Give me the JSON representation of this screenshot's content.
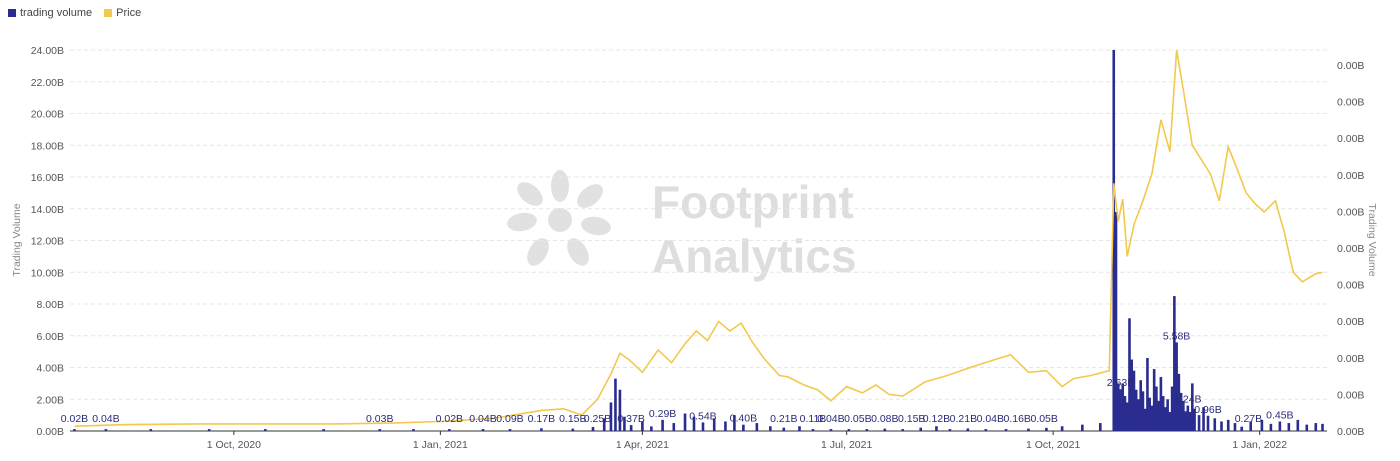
{
  "legend": [
    {
      "label": "trading volume",
      "color": "#2b2c8f"
    },
    {
      "label": "Price",
      "color": "#f2c94c"
    }
  ],
  "watermark": {
    "line1": "Footprint",
    "line2": "Analytics"
  },
  "chart_data": {
    "type": "bar",
    "title": "",
    "ylabel": "Trading Volume",
    "y2label": "Trading Volume",
    "ylim": [
      0,
      24
    ],
    "yticks": [
      "0.00B",
      "2.00B",
      "4.00B",
      "6.00B",
      "8.00B",
      "10.00B",
      "12.00B",
      "14.00B",
      "16.00B",
      "18.00B",
      "20.00B",
      "22.00B",
      "24.00B"
    ],
    "y2ticks": [
      "0.00B",
      "0.00B",
      "0.00B",
      "0.00B",
      "0.00B",
      "0.00B",
      "0.00B",
      "0.00B",
      "0.00B",
      "0.00B",
      "0.00B"
    ],
    "xlim": [
      "2020-07-20",
      "2022-01-31"
    ],
    "xticks": [
      {
        "date": "2020-10-01",
        "label": "1 Oct, 2020"
      },
      {
        "date": "2021-01-01",
        "label": "1 Jan, 2021"
      },
      {
        "date": "2021-04-01",
        "label": "1 Apr, 2021"
      },
      {
        "date": "2021-07-01",
        "label": "1 Jul, 2021"
      },
      {
        "date": "2021-10-01",
        "label": "1 Oct, 2021"
      },
      {
        "date": "2022-01-01",
        "label": "1 Jan, 2022"
      }
    ],
    "grid": true,
    "legend_position": "top-left",
    "series": [
      {
        "name": "trading volume",
        "type": "bar",
        "axis": "left",
        "color": "#2b2c8f",
        "points": [
          [
            "2020-07-22",
            0.02
          ],
          [
            "2020-08-05",
            0.04
          ],
          [
            "2020-08-25",
            0.03
          ],
          [
            "2020-09-20",
            0.03
          ],
          [
            "2020-10-15",
            0.03
          ],
          [
            "2020-11-10",
            0.03
          ],
          [
            "2020-12-05",
            0.03
          ],
          [
            "2020-12-20",
            0.03
          ],
          [
            "2021-01-05",
            0.02
          ],
          [
            "2021-01-20",
            0.04
          ],
          [
            "2021-02-01",
            0.09
          ],
          [
            "2021-02-15",
            0.17
          ],
          [
            "2021-03-01",
            0.15
          ],
          [
            "2021-03-10",
            0.25
          ],
          [
            "2021-03-15",
            0.8
          ],
          [
            "2021-03-18",
            1.8
          ],
          [
            "2021-03-20",
            3.3
          ],
          [
            "2021-03-22",
            2.6
          ],
          [
            "2021-03-24",
            0.9
          ],
          [
            "2021-03-27",
            0.37
          ],
          [
            "2021-04-01",
            0.6
          ],
          [
            "2021-04-05",
            0.29
          ],
          [
            "2021-04-10",
            0.7
          ],
          [
            "2021-04-15",
            0.5
          ],
          [
            "2021-04-20",
            1.1
          ],
          [
            "2021-04-24",
            0.9
          ],
          [
            "2021-04-28",
            0.54
          ],
          [
            "2021-05-03",
            0.8
          ],
          [
            "2021-05-08",
            0.6
          ],
          [
            "2021-05-12",
            1.0
          ],
          [
            "2021-05-16",
            0.4
          ],
          [
            "2021-05-22",
            0.5
          ],
          [
            "2021-05-28",
            0.3
          ],
          [
            "2021-06-03",
            0.21
          ],
          [
            "2021-06-10",
            0.3
          ],
          [
            "2021-06-16",
            0.11
          ],
          [
            "2021-06-24",
            0.04
          ],
          [
            "2021-07-02",
            0.05
          ],
          [
            "2021-07-10",
            0.08
          ],
          [
            "2021-07-18",
            0.15
          ],
          [
            "2021-07-26",
            0.12
          ],
          [
            "2021-08-03",
            0.21
          ],
          [
            "2021-08-10",
            0.3
          ],
          [
            "2021-08-16",
            0.04
          ],
          [
            "2021-08-24",
            0.16
          ],
          [
            "2021-09-01",
            0.05
          ],
          [
            "2021-09-10",
            0.1
          ],
          [
            "2021-09-20",
            0.15
          ],
          [
            "2021-09-28",
            0.2
          ],
          [
            "2021-10-05",
            0.3
          ],
          [
            "2021-10-14",
            0.4
          ],
          [
            "2021-10-22",
            0.5
          ],
          [
            "2021-10-28",
            24.0
          ],
          [
            "2021-10-29",
            13.8
          ],
          [
            "2021-10-30",
            3.0
          ],
          [
            "2021-10-31",
            2.63
          ],
          [
            "2021-11-01",
            3.0
          ],
          [
            "2021-11-02",
            2.2
          ],
          [
            "2021-11-03",
            1.8
          ],
          [
            "2021-11-04",
            7.1
          ],
          [
            "2021-11-05",
            4.5
          ],
          [
            "2021-11-06",
            3.8
          ],
          [
            "2021-11-07",
            2.6
          ],
          [
            "2021-11-08",
            2.0
          ],
          [
            "2021-11-09",
            3.2
          ],
          [
            "2021-11-10",
            2.5
          ],
          [
            "2021-11-11",
            1.4
          ],
          [
            "2021-11-12",
            4.6
          ],
          [
            "2021-11-13",
            2.1
          ],
          [
            "2021-11-14",
            1.6
          ],
          [
            "2021-11-15",
            3.9
          ],
          [
            "2021-11-16",
            2.8
          ],
          [
            "2021-11-17",
            1.9
          ],
          [
            "2021-11-18",
            3.4
          ],
          [
            "2021-11-19",
            2.2
          ],
          [
            "2021-11-20",
            1.5
          ],
          [
            "2021-11-21",
            2.0
          ],
          [
            "2021-11-22",
            1.2
          ],
          [
            "2021-11-23",
            2.8
          ],
          [
            "2021-11-24",
            8.5
          ],
          [
            "2021-11-25",
            5.58
          ],
          [
            "2021-11-26",
            3.6
          ],
          [
            "2021-11-27",
            2.4
          ],
          [
            "2021-11-28",
            1.9
          ],
          [
            "2021-11-29",
            1.24
          ],
          [
            "2021-11-30",
            1.6
          ],
          [
            "2021-12-01",
            1.2
          ],
          [
            "2021-12-02",
            3.0
          ],
          [
            "2021-12-03",
            1.4
          ],
          [
            "2021-12-05",
            1.0
          ],
          [
            "2021-12-07",
            1.5
          ],
          [
            "2021-12-09",
            0.96
          ],
          [
            "2021-12-12",
            0.8
          ],
          [
            "2021-12-15",
            0.6
          ],
          [
            "2021-12-18",
            0.7
          ],
          [
            "2021-12-21",
            0.5
          ],
          [
            "2021-12-24",
            0.27
          ],
          [
            "2021-12-28",
            0.6
          ],
          [
            "2022-01-02",
            0.7
          ],
          [
            "2022-01-06",
            0.45
          ],
          [
            "2022-01-10",
            0.6
          ],
          [
            "2022-01-14",
            0.5
          ],
          [
            "2022-01-18",
            0.7
          ],
          [
            "2022-01-22",
            0.4
          ],
          [
            "2022-01-26",
            0.5
          ],
          [
            "2022-01-29",
            0.45
          ]
        ]
      },
      {
        "name": "Price",
        "type": "line",
        "axis": "right",
        "color": "#f2c94c",
        "points": [
          [
            "2020-07-22",
            0.3
          ],
          [
            "2020-08-15",
            0.4
          ],
          [
            "2020-09-15",
            0.45
          ],
          [
            "2020-10-15",
            0.45
          ],
          [
            "2020-11-15",
            0.45
          ],
          [
            "2020-12-10",
            0.5
          ],
          [
            "2021-01-01",
            0.6
          ],
          [
            "2021-01-25",
            0.8
          ],
          [
            "2021-02-15",
            1.3
          ],
          [
            "2021-02-25",
            1.4
          ],
          [
            "2021-03-05",
            1.0
          ],
          [
            "2021-03-12",
            2.0
          ],
          [
            "2021-03-18",
            3.6
          ],
          [
            "2021-03-22",
            4.9
          ],
          [
            "2021-03-26",
            4.5
          ],
          [
            "2021-04-01",
            3.7
          ],
          [
            "2021-04-08",
            5.1
          ],
          [
            "2021-04-14",
            4.3
          ],
          [
            "2021-04-20",
            5.5
          ],
          [
            "2021-04-25",
            6.3
          ],
          [
            "2021-04-30",
            5.7
          ],
          [
            "2021-05-05",
            6.9
          ],
          [
            "2021-05-10",
            6.3
          ],
          [
            "2021-05-15",
            6.8
          ],
          [
            "2021-05-20",
            5.6
          ],
          [
            "2021-05-25",
            4.6
          ],
          [
            "2021-06-01",
            3.5
          ],
          [
            "2021-06-05",
            3.4
          ],
          [
            "2021-06-12",
            2.9
          ],
          [
            "2021-06-18",
            2.6
          ],
          [
            "2021-06-24",
            1.9
          ],
          [
            "2021-07-01",
            2.8
          ],
          [
            "2021-07-08",
            2.4
          ],
          [
            "2021-07-14",
            2.9
          ],
          [
            "2021-07-20",
            2.3
          ],
          [
            "2021-07-26",
            2.2
          ],
          [
            "2021-08-05",
            3.1
          ],
          [
            "2021-08-15",
            3.5
          ],
          [
            "2021-08-25",
            4.0
          ],
          [
            "2021-09-05",
            4.5
          ],
          [
            "2021-09-12",
            4.8
          ],
          [
            "2021-09-20",
            3.7
          ],
          [
            "2021-09-28",
            3.8
          ],
          [
            "2021-10-05",
            2.8
          ],
          [
            "2021-10-10",
            3.3
          ],
          [
            "2021-10-18",
            3.5
          ],
          [
            "2021-10-26",
            3.8
          ],
          [
            "2021-10-28",
            15.6
          ],
          [
            "2021-10-30",
            13.2
          ],
          [
            "2021-11-01",
            14.6
          ],
          [
            "2021-11-03",
            11.0
          ],
          [
            "2021-11-06",
            13.0
          ],
          [
            "2021-11-10",
            14.5
          ],
          [
            "2021-11-14",
            16.2
          ],
          [
            "2021-11-18",
            19.6
          ],
          [
            "2021-11-22",
            17.6
          ],
          [
            "2021-11-25",
            24.0
          ],
          [
            "2021-11-28",
            21.5
          ],
          [
            "2021-12-02",
            18.0
          ],
          [
            "2021-12-06",
            17.1
          ],
          [
            "2021-12-10",
            16.2
          ],
          [
            "2021-12-14",
            14.5
          ],
          [
            "2021-12-18",
            17.9
          ],
          [
            "2021-12-22",
            16.5
          ],
          [
            "2021-12-26",
            15.0
          ],
          [
            "2021-12-30",
            14.3
          ],
          [
            "2022-01-03",
            13.8
          ],
          [
            "2022-01-08",
            14.5
          ],
          [
            "2022-01-12",
            12.5
          ],
          [
            "2022-01-16",
            10.0
          ],
          [
            "2022-01-20",
            9.4
          ],
          [
            "2022-01-26",
            9.9
          ],
          [
            "2022-01-29",
            10.0
          ]
        ]
      }
    ],
    "bar_labels": [
      [
        "2020-07-22",
        "0.02B"
      ],
      [
        "2020-08-05",
        "0.04B"
      ],
      [
        "2020-12-05",
        "0.03B"
      ],
      [
        "2021-01-05",
        "0.02B"
      ],
      [
        "2021-01-20",
        "0.04B"
      ],
      [
        "2021-02-01",
        "0.09B"
      ],
      [
        "2021-02-15",
        "0.17B"
      ],
      [
        "2021-03-01",
        "0.15B"
      ],
      [
        "2021-03-12",
        "0.25B"
      ],
      [
        "2021-03-27",
        "0.37B"
      ],
      [
        "2021-04-10",
        "0.29B"
      ],
      [
        "2021-04-28",
        "0.54B"
      ],
      [
        "2021-05-16",
        "0.40B"
      ],
      [
        "2021-06-03",
        "0.21B"
      ],
      [
        "2021-06-16",
        "0.11B"
      ],
      [
        "2021-06-24",
        "0.04B"
      ],
      [
        "2021-07-06",
        "0.05B"
      ],
      [
        "2021-07-18",
        "0.08B"
      ],
      [
        "2021-07-30",
        "0.15B"
      ],
      [
        "2021-08-10",
        "0.12B"
      ],
      [
        "2021-08-22",
        "0.21B"
      ],
      [
        "2021-09-03",
        "0.04B"
      ],
      [
        "2021-09-15",
        "0.16B"
      ],
      [
        "2021-09-27",
        "0.05B"
      ],
      [
        "2021-10-31",
        "2.63B"
      ],
      [
        "2021-11-25",
        "5.58B"
      ],
      [
        "2021-11-30",
        "1.24B"
      ],
      [
        "2021-12-09",
        "0.96B"
      ],
      [
        "2021-12-27",
        "0.27B"
      ],
      [
        "2022-01-10",
        "0.45B"
      ]
    ]
  }
}
